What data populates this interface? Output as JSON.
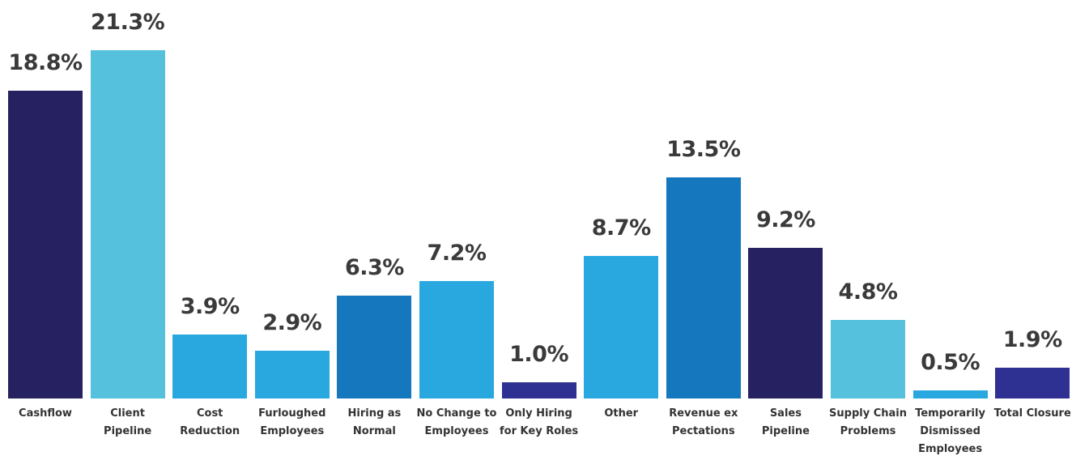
{
  "chart_data": {
    "type": "bar",
    "categories": [
      "Cashflow",
      "Client Pipeline",
      "Cost Reduction",
      "Furloughed Employees",
      "Hiring as Normal",
      "No Change to Employees",
      "Only Hiring for Key Roles",
      "Other",
      "Revenue ex Pectations",
      "Sales Pipeline",
      "Supply Chain Problems",
      "Temporarily Dismissed Employees",
      "Total Closure"
    ],
    "values": [
      18.8,
      21.3,
      3.9,
      2.9,
      6.3,
      7.2,
      1.0,
      8.7,
      13.5,
      9.2,
      4.8,
      0.5,
      1.9
    ],
    "value_labels": [
      "18.8%",
      "21.3%",
      "3.9%",
      "2.9%",
      "6.3%",
      "7.2%",
      "1.0%",
      "8.7%",
      "13.5%",
      "9.2%",
      "4.8%",
      "0.5%",
      "1.9%"
    ],
    "colors": [
      "#262261",
      "#55c1dc",
      "#29a8e0",
      "#29a8e0",
      "#1577bd",
      "#29a8e0",
      "#2e3192",
      "#29a8e0",
      "#1577bd",
      "#262261",
      "#55c1dc",
      "#29a8e0",
      "#2e3192"
    ]
  }
}
